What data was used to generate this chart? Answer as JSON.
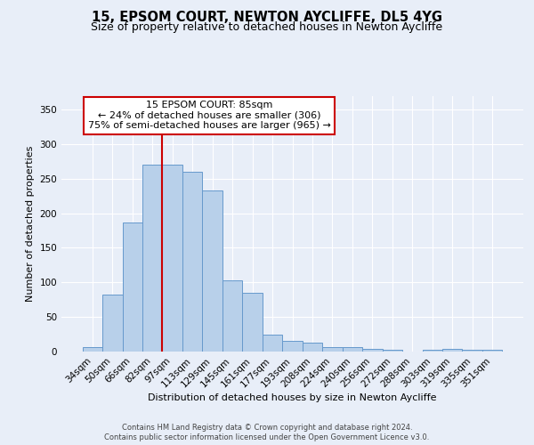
{
  "title1": "15, EPSOM COURT, NEWTON AYCLIFFE, DL5 4YG",
  "title2": "Size of property relative to detached houses in Newton Aycliffe",
  "xlabel": "Distribution of detached houses by size in Newton Aycliffe",
  "ylabel": "Number of detached properties",
  "bar_labels": [
    "34sqm",
    "50sqm",
    "66sqm",
    "82sqm",
    "97sqm",
    "113sqm",
    "129sqm",
    "145sqm",
    "161sqm",
    "177sqm",
    "193sqm",
    "208sqm",
    "224sqm",
    "240sqm",
    "256sqm",
    "272sqm",
    "288sqm",
    "303sqm",
    "319sqm",
    "335sqm",
    "351sqm"
  ],
  "bar_values": [
    6,
    82,
    186,
    270,
    270,
    260,
    233,
    103,
    85,
    25,
    15,
    13,
    7,
    6,
    4,
    3,
    0,
    3,
    4,
    3,
    3
  ],
  "bar_color": "#b8d0ea",
  "bar_edgecolor": "#6699cc",
  "red_line_x": 3.5,
  "annotation_title": "15 EPSOM COURT: 85sqm",
  "annotation_line1": "← 24% of detached houses are smaller (306)",
  "annotation_line2": "75% of semi-detached houses are larger (965) →",
  "annotation_box_color": "#ffffff",
  "annotation_box_edgecolor": "#cc0000",
  "red_line_color": "#cc0000",
  "footer1": "Contains HM Land Registry data © Crown copyright and database right 2024.",
  "footer2": "Contains public sector information licensed under the Open Government Licence v3.0.",
  "ylim": [
    0,
    370
  ],
  "yticks": [
    0,
    50,
    100,
    150,
    200,
    250,
    300,
    350
  ],
  "background_color": "#e8eef8",
  "plot_bg_color": "#e8eef8",
  "grid_color": "#ffffff",
  "title1_fontsize": 10.5,
  "title2_fontsize": 9,
  "axis_fontsize": 8,
  "tick_fontsize": 7.5,
  "footer_fontsize": 6
}
